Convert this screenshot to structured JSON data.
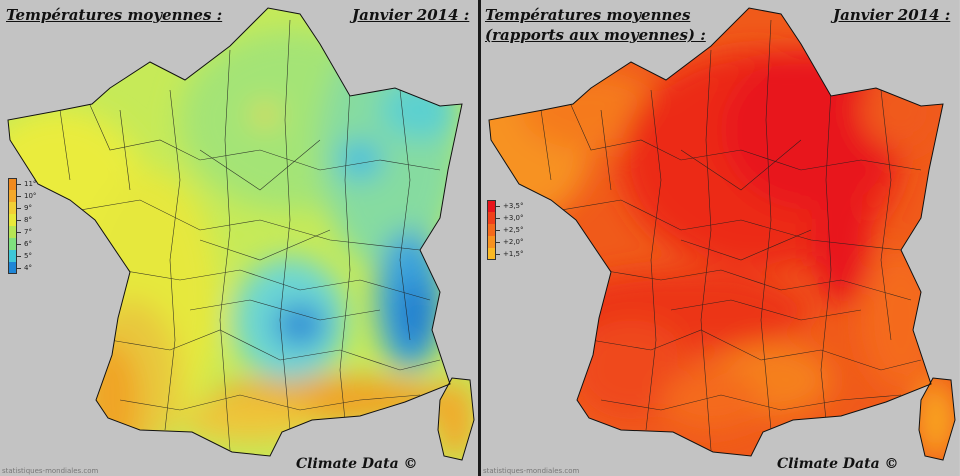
{
  "left_panel": {
    "title": "Températures moyennes :",
    "date": "Janvier 2014 :",
    "watermark": "statistiques-mondiales.com",
    "credit": "Climate Data ©",
    "legend": [
      {
        "label": "11°",
        "color": "#f08a1e"
      },
      {
        "label": "10°",
        "color": "#f3a82a"
      },
      {
        "label": "9°",
        "color": "#f2cf35"
      },
      {
        "label": "8°",
        "color": "#e8e83a"
      },
      {
        "label": "7°",
        "color": "#b6e555"
      },
      {
        "label": "6°",
        "color": "#7fe07e"
      },
      {
        "label": "5°",
        "color": "#3fc7d8"
      },
      {
        "label": "4°",
        "color": "#1f86d6"
      }
    ]
  },
  "right_panel": {
    "title_line1": "Températures moyennes",
    "title_line2": "(rapports aux moyennes) :",
    "date": "Janvier 2014 :",
    "watermark": "statistiques-mondiales.com",
    "credit": "Climate Data ©",
    "legend": [
      {
        "label": "+3,5°",
        "color": "#e8141c"
      },
      {
        "label": "+3,0°",
        "color": "#f0401a"
      },
      {
        "label": "+2,5°",
        "color": "#f46a1c"
      },
      {
        "label": "+2,0°",
        "color": "#f79220"
      },
      {
        "label": "+1,5°",
        "color": "#fbb924"
      }
    ]
  }
}
